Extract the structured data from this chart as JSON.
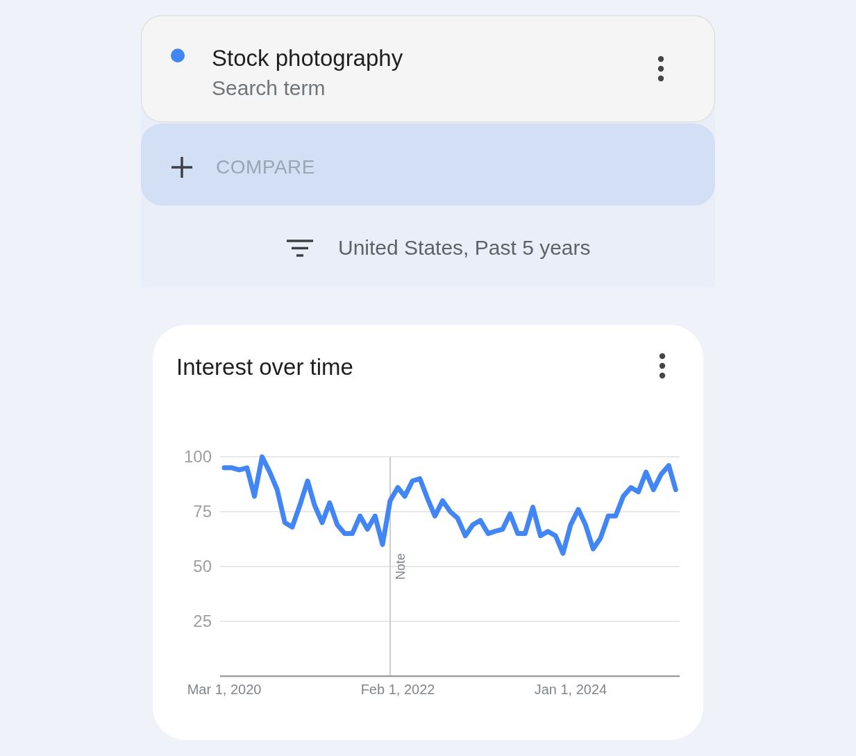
{
  "chart_data": {
    "type": "line",
    "title": "Interest over time",
    "subtitle": "United States, Past 5 years",
    "annotations": [
      "Search term",
      "COMPARE"
    ],
    "x": [
      "2020-03",
      "2020-04",
      "2020-05",
      "2020-06",
      "2020-07",
      "2020-08",
      "2020-09",
      "2020-10",
      "2020-11",
      "2020-12",
      "2021-01",
      "2021-02",
      "2021-03",
      "2021-04",
      "2021-05",
      "2021-06",
      "2021-07",
      "2021-08",
      "2021-09",
      "2021-10",
      "2021-11",
      "2021-12",
      "2022-01",
      "2022-02",
      "2022-03",
      "2022-04",
      "2022-05",
      "2022-06",
      "2022-07",
      "2022-08",
      "2022-09",
      "2022-10",
      "2022-11",
      "2022-12",
      "2023-01",
      "2023-02",
      "2023-03",
      "2023-04",
      "2023-05",
      "2023-06",
      "2023-07",
      "2023-08",
      "2023-09",
      "2023-10",
      "2023-11",
      "2023-12",
      "2024-01",
      "2024-02",
      "2024-03",
      "2024-04",
      "2024-05",
      "2024-06",
      "2024-07",
      "2024-08",
      "2024-09",
      "2024-10",
      "2024-11",
      "2024-12",
      "2025-01",
      "2025-02",
      "2025-03"
    ],
    "series": [
      {
        "name": "Stock photography",
        "color": "#4285f4",
        "values": [
          95,
          95,
          94,
          95,
          82,
          100,
          93,
          85,
          70,
          68,
          78,
          89,
          78,
          70,
          79,
          69,
          65,
          65,
          73,
          67,
          73,
          60,
          80,
          86,
          82,
          89,
          90,
          81,
          73,
          80,
          75,
          72,
          64,
          69,
          71,
          65,
          66,
          67,
          74,
          65,
          65,
          77,
          64,
          66,
          64,
          56,
          69,
          76,
          69,
          58,
          63,
          73,
          73,
          82,
          86,
          84,
          93,
          85,
          92,
          96,
          85
        ]
      }
    ],
    "xlim": [
      "2020-02-13",
      "2025-03-17"
    ],
    "xticks": [
      {
        "value": "2020-03-01",
        "label": "Mar 1, 2020"
      },
      {
        "value": "2022-02-01",
        "label": "Feb 1, 2022"
      },
      {
        "value": "2024-01-01",
        "label": "Jan 1, 2024"
      }
    ],
    "ylim": [
      0,
      100
    ],
    "yticks": [
      25,
      50,
      75,
      100
    ],
    "grid": "y",
    "legend": "top left",
    "ref_lines": [
      {
        "axis": "x",
        "value": "2022-01-01",
        "label": "Note",
        "color": "#cccccc"
      }
    ]
  }
}
